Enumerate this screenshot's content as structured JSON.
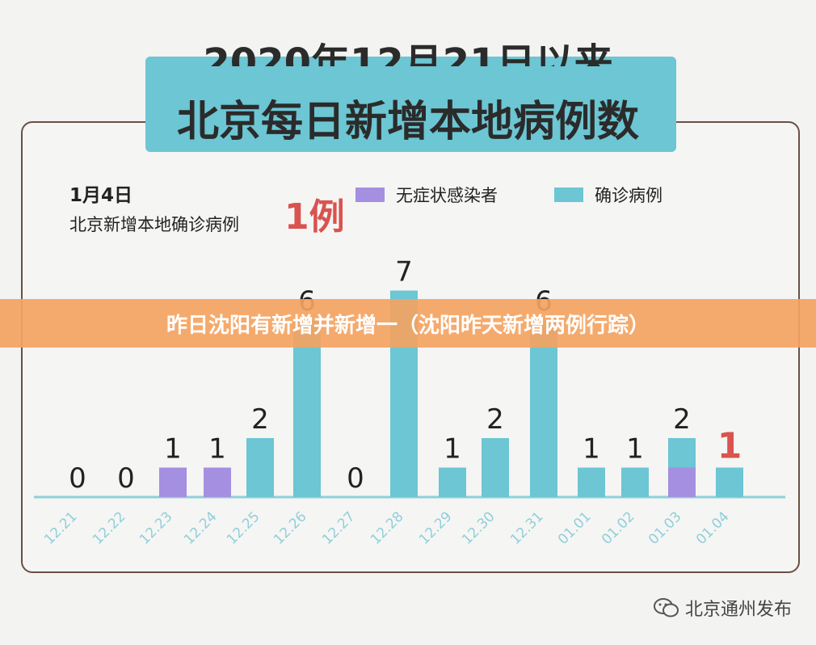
{
  "title": {
    "line1": "2020年12月21日以来",
    "line2": "北京每日新增本地病例数"
  },
  "info": {
    "date": "1月4日",
    "text": "北京新增本地确诊病例",
    "count": "1例"
  },
  "banner": "昨日沈阳有新增并新增一（沈阳昨天新增两例行踪）",
  "watermark": "北京通州发布",
  "chart_data": {
    "type": "bar",
    "stacked": true,
    "categories": [
      "12.21",
      "12.22",
      "12.23",
      "12.24",
      "12.25",
      "12.26",
      "12.27",
      "12.28",
      "12.29",
      "12.30",
      "12.31",
      "01.01",
      "01.02",
      "01.03",
      "01.04"
    ],
    "series": [
      {
        "name": "无症状感染者",
        "color": "#a58fe0",
        "values": [
          0,
          0,
          1,
          1,
          0,
          0,
          0,
          0,
          0,
          0,
          0,
          0,
          0,
          1,
          0
        ]
      },
      {
        "name": "确诊病例",
        "color": "#6cc6d3",
        "values": [
          0,
          0,
          0,
          0,
          2,
          6,
          0,
          7,
          1,
          2,
          6,
          1,
          1,
          1,
          1
        ]
      }
    ],
    "totals": [
      0,
      0,
      1,
      1,
      2,
      6,
      0,
      7,
      1,
      2,
      6,
      1,
      1,
      2,
      1
    ],
    "highlight_color": "#d9534f",
    "ylim": [
      0,
      7
    ],
    "grid": false,
    "legend": "top"
  }
}
